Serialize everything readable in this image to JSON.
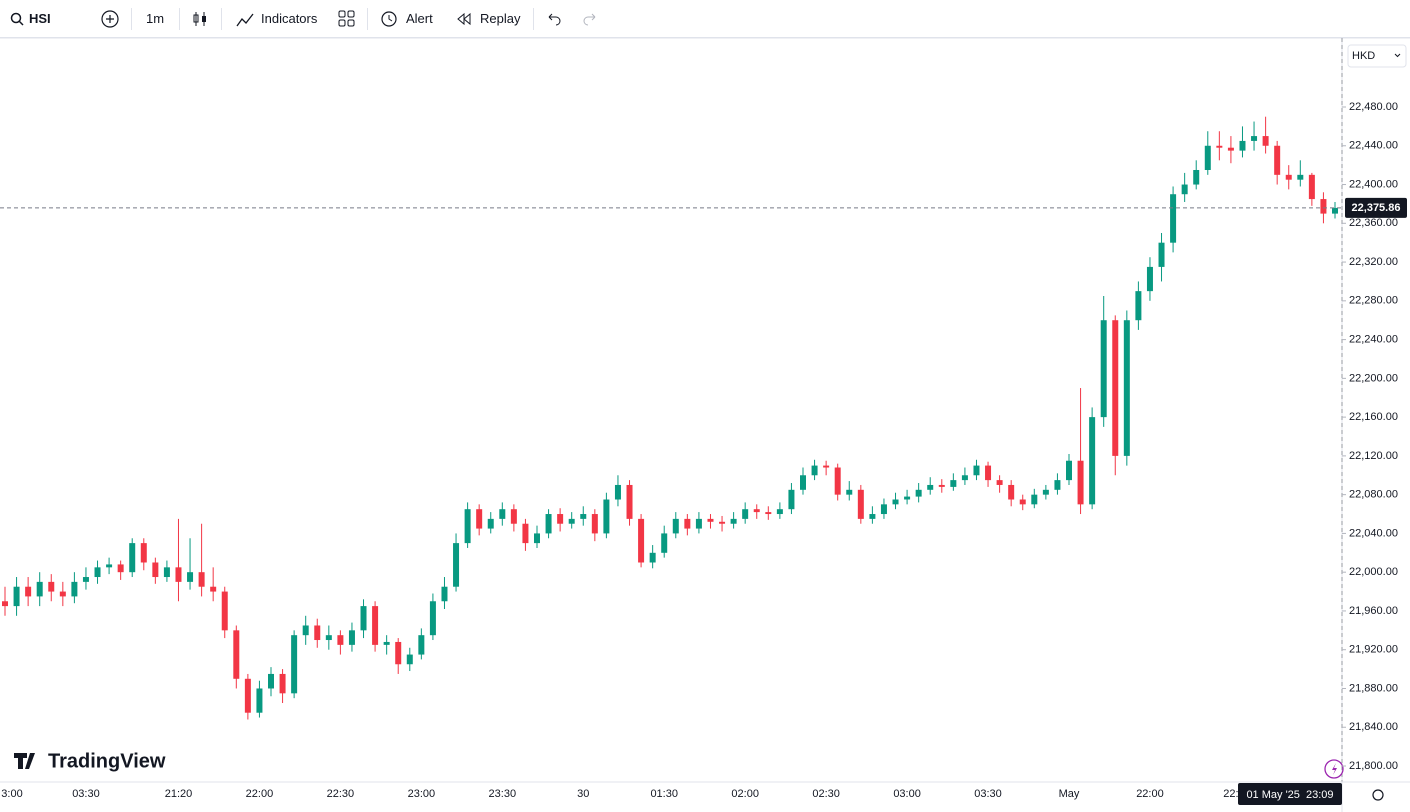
{
  "toolbar": {
    "symbol": "HSI",
    "interval": "1m",
    "indicators": "Indicators",
    "alert": "Alert",
    "replay": "Replay"
  },
  "currency": "HKD",
  "logo": "TradingView",
  "crosshair_time": "01 May '25  23:09",
  "chart_data": {
    "type": "candlestick",
    "up_color": "#089981",
    "down_color": "#f23645",
    "categories": [
      "3:00",
      null,
      null,
      null,
      null,
      null,
      null,
      "03:30",
      null,
      null,
      null,
      null,
      null,
      null,
      null,
      "21:20",
      null,
      null,
      null,
      null,
      null,
      null,
      "22:00",
      null,
      null,
      null,
      null,
      null,
      null,
      "22:30",
      null,
      null,
      null,
      null,
      null,
      null,
      "23:00",
      null,
      null,
      null,
      null,
      null,
      null,
      "23:30",
      null,
      null,
      null,
      null,
      null,
      null,
      "30",
      null,
      null,
      null,
      null,
      null,
      null,
      "01:30",
      null,
      null,
      null,
      null,
      null,
      null,
      "02:00",
      null,
      null,
      null,
      null,
      null,
      null,
      "02:30",
      null,
      null,
      null,
      null,
      null,
      null,
      "03:00",
      null,
      null,
      null,
      null,
      null,
      null,
      "03:30",
      null,
      null,
      null,
      null,
      null,
      null,
      "May",
      null,
      null,
      null,
      null,
      null,
      null,
      "22:00",
      null,
      null,
      null,
      null,
      null,
      null,
      "22:",
      null,
      null,
      null,
      null,
      null,
      null,
      null,
      null,
      null
    ],
    "open": [
      21970,
      21965,
      21985,
      21975,
      21990,
      21980,
      21975,
      21990,
      21995,
      22005,
      22008,
      22000,
      22030,
      22010,
      21995,
      22005,
      21990,
      22000,
      21985,
      21980,
      21940,
      21890,
      21855,
      21880,
      21895,
      21875,
      21935,
      21945,
      21930,
      21935,
      21925,
      21940,
      21965,
      21925,
      21928,
      21905,
      21915,
      21935,
      21970,
      21985,
      22030,
      22065,
      22045,
      22055,
      22065,
      22050,
      22030,
      22040,
      22060,
      22050,
      22055,
      22060,
      22040,
      22075,
      22090,
      22055,
      22010,
      22020,
      22040,
      22055,
      22045,
      22055,
      22052,
      22050,
      22055,
      22065,
      22062,
      22060,
      22065,
      22085,
      22100,
      22110,
      22108,
      22080,
      22085,
      22055,
      22060,
      22070,
      22075,
      22078,
      22085,
      22090,
      22088,
      22095,
      22100,
      22110,
      22095,
      22090,
      22075,
      22070,
      22080,
      22085,
      22095,
      22115,
      22070,
      22160,
      22260,
      22120,
      22260,
      22290,
      22315,
      22340,
      22390,
      22400,
      22415,
      22440,
      22438,
      22435,
      22445,
      22450,
      22440,
      22410,
      22405,
      22410,
      22385,
      22370
    ],
    "high": [
      21985,
      21995,
      21995,
      22000,
      21998,
      21990,
      22000,
      22005,
      22012,
      22015,
      22012,
      22035,
      22035,
      22015,
      22012,
      22055,
      22035,
      22050,
      22005,
      21985,
      21945,
      21895,
      21888,
      21902,
      21900,
      21940,
      21955,
      21952,
      21945,
      21940,
      21948,
      21972,
      21970,
      21935,
      21932,
      21922,
      21942,
      21978,
      21995,
      22040,
      22072,
      22070,
      22062,
      22072,
      22070,
      22055,
      22048,
      22065,
      22066,
      22062,
      22068,
      22065,
      22082,
      22100,
      22095,
      22060,
      22028,
      22048,
      22062,
      22060,
      22062,
      22060,
      22058,
      22062,
      22072,
      22070,
      22068,
      22072,
      22092,
      22108,
      22116,
      22115,
      22112,
      22094,
      22090,
      22068,
      22076,
      22082,
      22085,
      22092,
      22098,
      22096,
      22102,
      22108,
      22116,
      22114,
      22100,
      22095,
      22080,
      22086,
      22090,
      22102,
      22122,
      22190,
      22170,
      22285,
      22265,
      22270,
      22300,
      22325,
      22350,
      22398,
      22412,
      22425,
      22455,
      22455,
      22450,
      22460,
      22465,
      22470,
      22445,
      22420,
      22425,
      22412,
      22392,
      22382
    ],
    "low": [
      21955,
      21955,
      21965,
      21965,
      21970,
      21965,
      21968,
      21982,
      21988,
      21998,
      21992,
      21995,
      22002,
      21988,
      21990,
      21970,
      21982,
      21975,
      21970,
      21932,
      21880,
      21848,
      21850,
      21872,
      21865,
      21870,
      21925,
      21922,
      21920,
      21915,
      21918,
      21932,
      21918,
      21915,
      21895,
      21898,
      21910,
      21930,
      21962,
      21980,
      22025,
      22038,
      22040,
      22048,
      22042,
      22022,
      22025,
      22035,
      22042,
      22045,
      22048,
      22032,
      22035,
      22068,
      22048,
      22005,
      22004,
      22015,
      22035,
      22038,
      22040,
      22045,
      22042,
      22045,
      22050,
      22055,
      22054,
      22055,
      22060,
      22080,
      22095,
      22100,
      22074,
      22074,
      22050,
      22050,
      22055,
      22065,
      22070,
      22072,
      22080,
      22082,
      22084,
      22090,
      22095,
      22088,
      22082,
      22068,
      22064,
      22066,
      22075,
      22080,
      22090,
      22060,
      22065,
      22150,
      22100,
      22110,
      22250,
      22280,
      22300,
      22330,
      22382,
      22395,
      22410,
      22425,
      22422,
      22428,
      22435,
      22432,
      22400,
      22395,
      22398,
      22378,
      22360,
      22365
    ],
    "close": [
      21965,
      21985,
      21975,
      21990,
      21980,
      21975,
      21990,
      21995,
      22005,
      22008,
      22000,
      22030,
      22010,
      21995,
      22005,
      21990,
      22000,
      21985,
      21980,
      21940,
      21890,
      21855,
      21880,
      21895,
      21875,
      21935,
      21945,
      21930,
      21935,
      21925,
      21940,
      21965,
      21925,
      21928,
      21905,
      21915,
      21935,
      21970,
      21985,
      22030,
      22065,
      22045,
      22055,
      22065,
      22050,
      22030,
      22040,
      22060,
      22050,
      22055,
      22060,
      22040,
      22075,
      22090,
      22055,
      22010,
      22020,
      22040,
      22055,
      22045,
      22055,
      22052,
      22050,
      22055,
      22065,
      22062,
      22060,
      22065,
      22085,
      22100,
      22110,
      22108,
      22080,
      22085,
      22055,
      22060,
      22070,
      22075,
      22078,
      22085,
      22090,
      22088,
      22095,
      22100,
      22110,
      22095,
      22090,
      22075,
      22070,
      22080,
      22085,
      22095,
      22115,
      22070,
      22160,
      22260,
      22120,
      22260,
      22290,
      22315,
      22340,
      22390,
      22400,
      22415,
      22440,
      22438,
      22435,
      22445,
      22450,
      22440,
      22410,
      22405,
      22410,
      22385,
      22370,
      22375.86
    ],
    "last_price_label": "22,375.86",
    "ylim": [
      21783.5,
      22551.2
    ],
    "yticks": [
      {
        "value": 21800,
        "label": "21,800.00"
      },
      {
        "value": 21840,
        "label": "21,840.00"
      },
      {
        "value": 21880,
        "label": "21,880.00"
      },
      {
        "value": 21920,
        "label": "21,920.00"
      },
      {
        "value": 21960,
        "label": "21,960.00"
      },
      {
        "value": 22000,
        "label": "22,000.00"
      },
      {
        "value": 22040,
        "label": "22,040.00"
      },
      {
        "value": 22080,
        "label": "22,080.00"
      },
      {
        "value": 22120,
        "label": "22,120.00"
      },
      {
        "value": 22160,
        "label": "22,160.00"
      },
      {
        "value": 22200,
        "label": "22,200.00"
      },
      {
        "value": 22240,
        "label": "22,240.00"
      },
      {
        "value": 22280,
        "label": "22,280.00"
      },
      {
        "value": 22320,
        "label": "22,320.00"
      },
      {
        "value": 22360,
        "label": "22,360.00"
      },
      {
        "value": 22400,
        "label": "22,400.00"
      },
      {
        "value": 22440,
        "label": "22,440.00"
      },
      {
        "value": 22480,
        "label": "22,480.00"
      }
    ]
  }
}
